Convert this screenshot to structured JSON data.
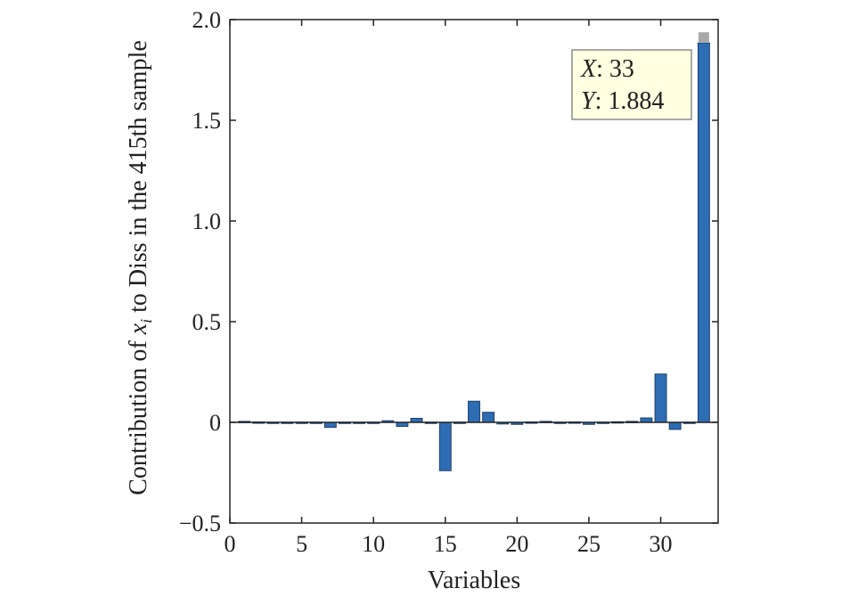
{
  "chart_data": {
    "type": "bar",
    "x": [
      1,
      2,
      3,
      4,
      5,
      6,
      7,
      8,
      9,
      10,
      11,
      12,
      13,
      14,
      15,
      16,
      17,
      18,
      19,
      20,
      21,
      22,
      23,
      24,
      25,
      26,
      27,
      28,
      29,
      30,
      31,
      32,
      33
    ],
    "values": [
      0.005,
      0.002,
      0.001,
      0.001,
      0.001,
      0.001,
      -0.025,
      0.001,
      0.001,
      0.001,
      0.008,
      -0.02,
      0.02,
      0.001,
      -0.24,
      0.001,
      0.105,
      0.05,
      -0.008,
      -0.01,
      0.002,
      0.005,
      0.001,
      0.002,
      -0.01,
      0.001,
      0.003,
      0.005,
      0.022,
      0.24,
      -0.035,
      0.001,
      1.884
    ],
    "xlabel": "Variables",
    "ylabel": {
      "before": "Contribution of ",
      "var": "x",
      "sub": "i",
      "after": " to Diss in the 415th sample"
    },
    "xticks": [
      0,
      5,
      10,
      15,
      20,
      25,
      30
    ],
    "xtick_labels": [
      "0",
      "5",
      "10",
      "15",
      "20",
      "25",
      "30"
    ],
    "yticks": [
      -0.5,
      0,
      0.5,
      1.0,
      1.5,
      2.0
    ],
    "ytick_labels": [
      "−0.5",
      "0",
      "0.5",
      "1.0",
      "1.5",
      "2.0"
    ],
    "xlim": [
      0,
      34
    ],
    "ylim": [
      -0.5,
      2.0
    ],
    "grid": false,
    "bar_color": "#2E6DB4",
    "datatip": {
      "x_name": "X",
      "x_value": ": 33",
      "y_name": "Y",
      "y_value": ": 1.884"
    }
  }
}
